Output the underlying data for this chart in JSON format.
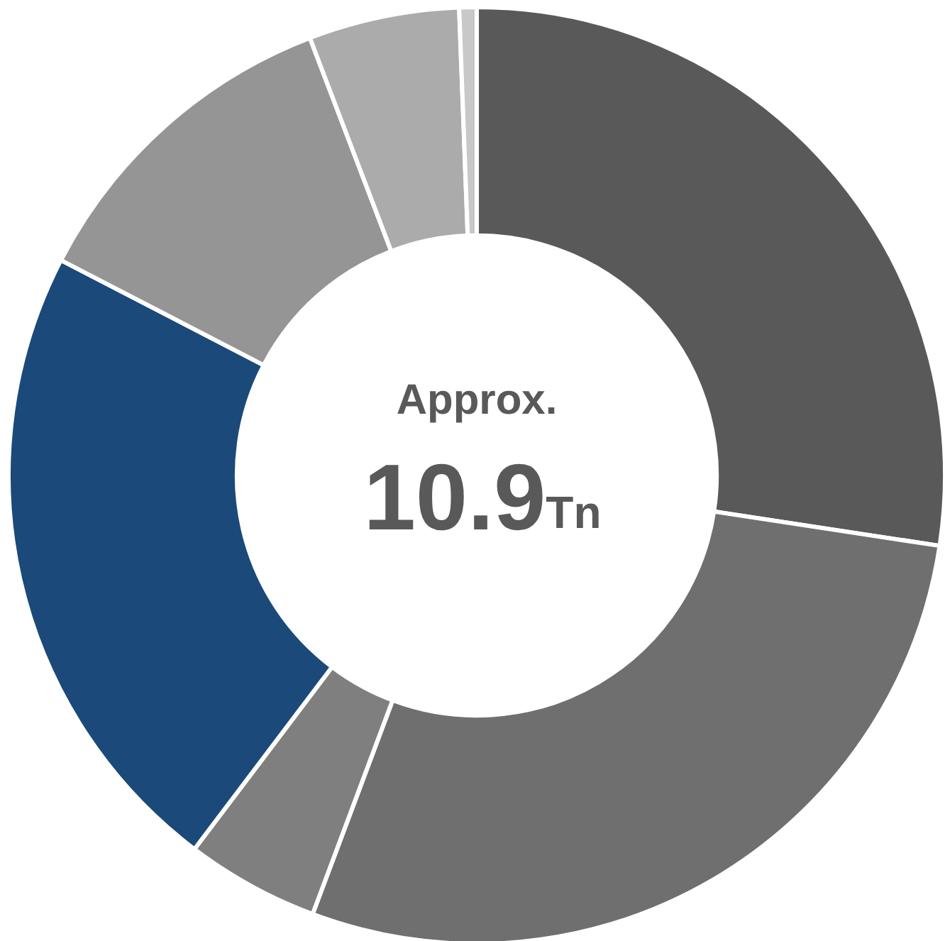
{
  "chart_data": {
    "type": "donut",
    "categories": [
      null,
      null,
      null,
      null,
      null,
      null,
      null
    ],
    "values": [
      27.4,
      28.3,
      4.6,
      22.3,
      11.6,
      5.2,
      0.6
    ],
    "colors": [
      "#595959",
      "#6f6f6f",
      "#7f7f7f",
      "#1b497a",
      "#959595",
      "#ababab",
      "#c8c8c8"
    ],
    "annotations": [
      "Approx.",
      "10.9Tn"
    ]
  }
}
